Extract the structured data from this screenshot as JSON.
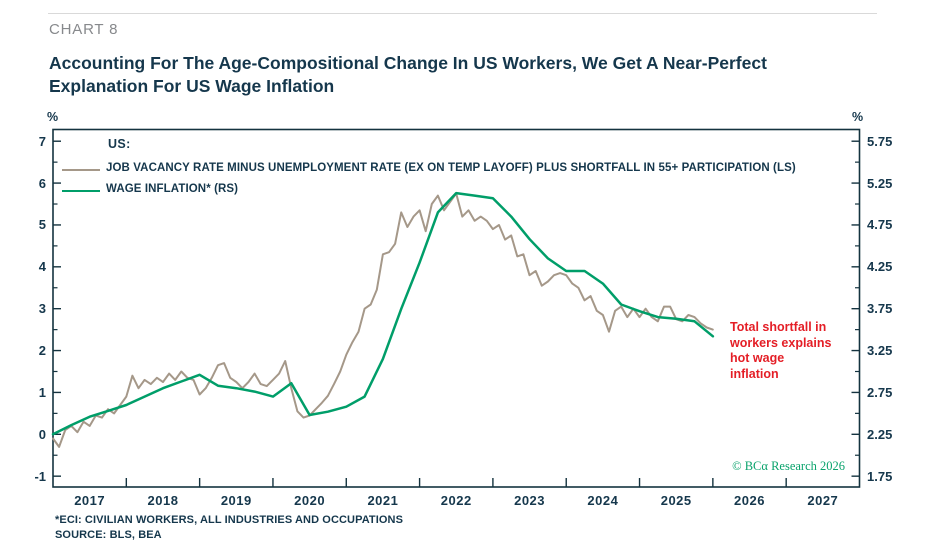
{
  "header": {
    "kicker": "CHART 8",
    "title_line1": "Accounting For The Age-Compositional Change In US Workers, We Get A Near-Perfect",
    "title_line2": "Explanation For US Wage Inflation"
  },
  "legend": {
    "group_label": "US:",
    "items": [
      {
        "label": "JOB VACANCY RATE MINUS UNEMPLOYMENT RATE (EX ON TEMP LAYOFF) PLUS SHORTFALL IN 55+ PARTICIPATION (LS)",
        "color": "#a59889"
      },
      {
        "label": "WAGE INFLATION* (RS)",
        "color": "#009e69"
      }
    ]
  },
  "annotation": {
    "lines": [
      "Total shortfall in",
      "workers explains",
      "hot wage",
      "inflation"
    ],
    "color": "#e41e26"
  },
  "copyright": "© BCα Research 2026",
  "footnotes": {
    "line1": "*ECI: CIVILIAN WORKERS, ALL INDUSTRIES AND OCCUPATIONS",
    "line2": "SOURCE: BLS, BEA"
  },
  "colors": {
    "text_dark": "#15374c",
    "axis": "#14333f",
    "series_gray": "#a59889",
    "series_green": "#009e69",
    "annotation_red": "#e41e26",
    "copyright_green": "#0aa36c"
  },
  "chart_data": {
    "type": "line",
    "title": "US wage shortfall vs wage inflation",
    "x_axis": {
      "years": [
        "2017",
        "2018",
        "2019",
        "2020",
        "2021",
        "2022",
        "2023",
        "2024",
        "2025",
        "2026",
        "2027"
      ],
      "range": [
        2017,
        2028
      ]
    },
    "left_axis": {
      "unit": "%",
      "ticks": [
        7,
        6,
        5,
        4,
        3,
        2,
        1,
        0,
        -1
      ],
      "range": [
        -1,
        7
      ]
    },
    "right_axis": {
      "unit": "%",
      "ticks": [
        "5.75",
        "5.25",
        "4.75",
        "4.25",
        "3.75",
        "3.25",
        "2.75",
        "2.25",
        "1.75"
      ],
      "range": [
        1.75,
        5.75
      ]
    },
    "grid": false,
    "legend_position": "top-left-inside",
    "series": [
      {
        "name": "JOB VACANCY RATE MINUS UNEMPLOYMENT RATE (EX ON TEMP LAYOFF) PLUS SHORTFALL IN 55+ PARTICIPATION (LS)",
        "axis": "left",
        "color": "#a59889",
        "x_start": 2017.0,
        "x_step": 0.08333,
        "values": [
          -0.1,
          -0.3,
          0.1,
          0.2,
          0.05,
          0.3,
          0.2,
          0.45,
          0.4,
          0.6,
          0.5,
          0.7,
          0.9,
          1.4,
          1.1,
          1.3,
          1.2,
          1.35,
          1.25,
          1.45,
          1.3,
          1.5,
          1.35,
          1.3,
          0.95,
          1.1,
          1.35,
          1.65,
          1.7,
          1.35,
          1.25,
          1.1,
          1.25,
          1.45,
          1.2,
          1.15,
          1.3,
          1.45,
          1.75,
          1.1,
          0.55,
          0.4,
          0.45,
          0.6,
          0.75,
          0.92,
          1.2,
          1.5,
          1.9,
          2.2,
          2.45,
          3.0,
          3.1,
          3.45,
          4.3,
          4.35,
          4.55,
          5.3,
          4.95,
          5.2,
          5.35,
          4.85,
          5.5,
          5.7,
          5.35,
          5.55,
          5.75,
          5.2,
          5.35,
          5.1,
          5.2,
          5.1,
          4.9,
          5.0,
          4.65,
          4.75,
          4.25,
          4.3,
          3.8,
          3.9,
          3.55,
          3.65,
          3.8,
          3.85,
          3.8,
          3.6,
          3.5,
          3.2,
          3.3,
          2.95,
          2.85,
          2.45,
          2.95,
          3.05,
          2.8,
          3.0,
          2.8,
          3.0,
          2.8,
          2.7,
          3.05,
          3.05,
          2.75,
          2.7,
          2.85,
          2.8,
          2.65,
          2.55,
          2.5
        ]
      },
      {
        "name": "WAGE INFLATION* (RS)",
        "axis": "right",
        "color": "#009e69",
        "x_start": 2017.0,
        "x_step": 0.25,
        "values": [
          2.25,
          2.36,
          2.46,
          2.53,
          2.6,
          2.7,
          2.8,
          2.88,
          2.96,
          2.83,
          2.8,
          2.76,
          2.7,
          2.86,
          2.48,
          2.52,
          2.58,
          2.7,
          3.15,
          3.75,
          4.3,
          4.9,
          5.13,
          5.1,
          5.07,
          4.85,
          4.58,
          4.35,
          4.2,
          4.2,
          4.05,
          3.8,
          3.72,
          3.65,
          3.63,
          3.6,
          3.42
        ]
      }
    ]
  }
}
